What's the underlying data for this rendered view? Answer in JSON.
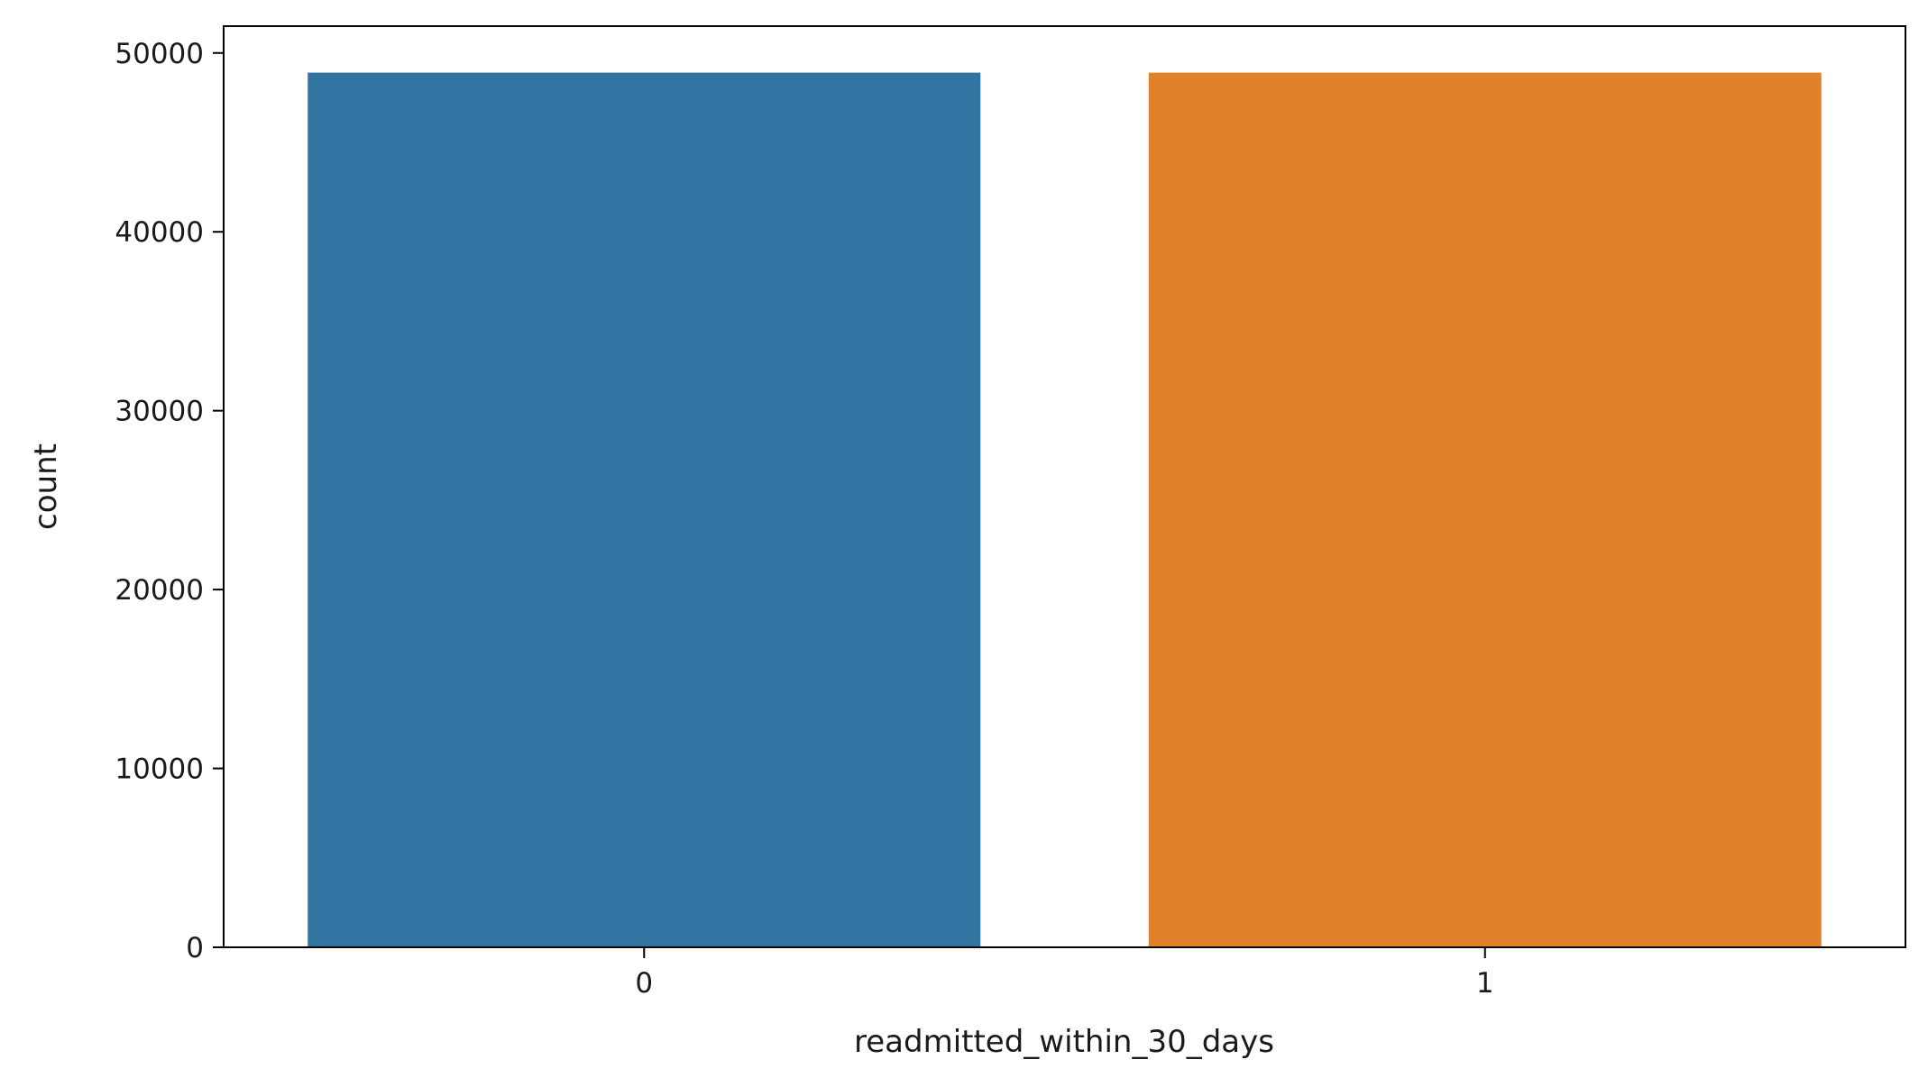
{
  "chart_data": {
    "type": "bar",
    "xlabel": "readmitted_within_30_days",
    "ylabel": "count",
    "categories": [
      "0",
      "1"
    ],
    "values": [
      48900,
      48900
    ],
    "colors": [
      "#3274a1",
      "#e1812c"
    ],
    "ylim": [
      0,
      51500
    ],
    "yticks": [
      0,
      10000,
      20000,
      30000,
      40000,
      50000
    ],
    "grid": false,
    "legend": "none"
  }
}
